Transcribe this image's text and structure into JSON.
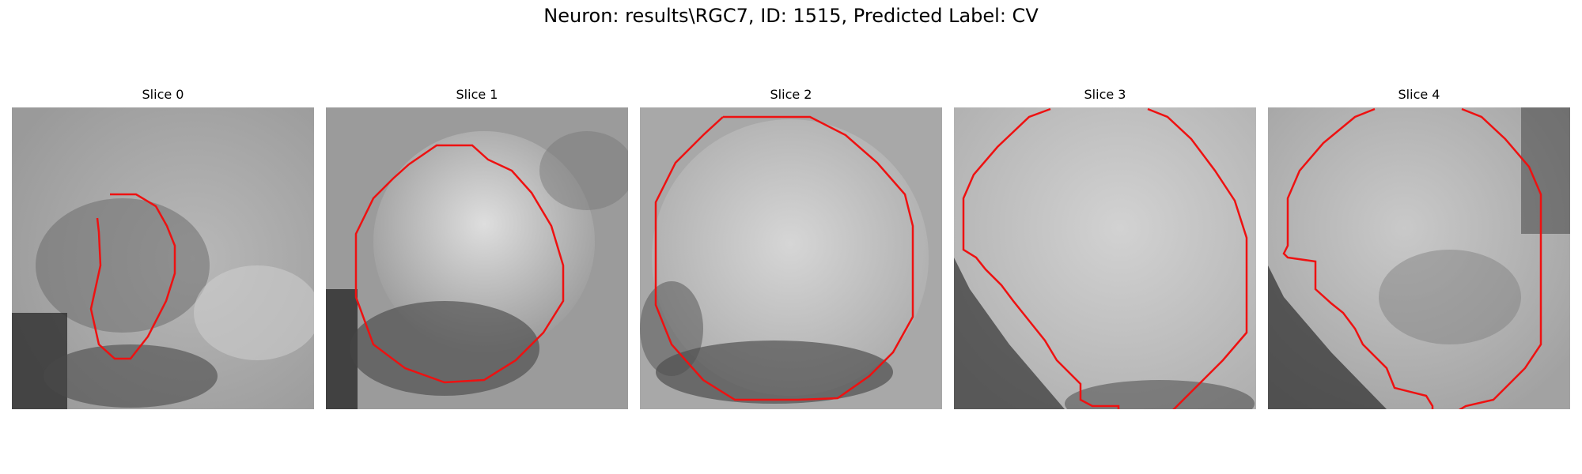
{
  "figure": {
    "title": "Neuron: results\\RGC7, ID: 1515, Predicted Label: CV"
  },
  "panels": [
    {
      "label": "Slice 0"
    },
    {
      "label": "Slice 1"
    },
    {
      "label": "Slice 2"
    },
    {
      "label": "Slice 3"
    },
    {
      "label": "Slice 4"
    }
  ],
  "colors": {
    "contour": "#ee1111",
    "background": "#ffffff"
  }
}
